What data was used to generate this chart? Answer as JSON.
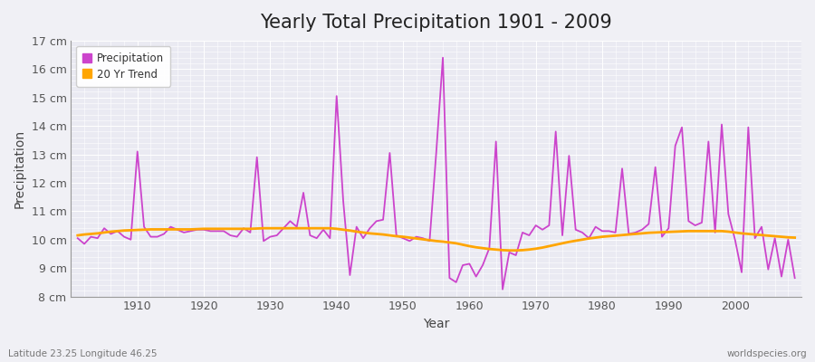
{
  "title": "Yearly Total Precipitation 1901 - 2009",
  "xlabel": "Year",
  "ylabel": "Precipitation",
  "years": [
    1901,
    1902,
    1903,
    1904,
    1905,
    1906,
    1907,
    1908,
    1909,
    1910,
    1911,
    1912,
    1913,
    1914,
    1915,
    1916,
    1917,
    1918,
    1919,
    1920,
    1921,
    1922,
    1923,
    1924,
    1925,
    1926,
    1927,
    1928,
    1929,
    1930,
    1931,
    1932,
    1933,
    1934,
    1935,
    1936,
    1937,
    1938,
    1939,
    1940,
    1941,
    1942,
    1943,
    1944,
    1945,
    1946,
    1947,
    1948,
    1949,
    1950,
    1951,
    1952,
    1953,
    1954,
    1955,
    1956,
    1957,
    1958,
    1959,
    1960,
    1961,
    1962,
    1963,
    1964,
    1965,
    1966,
    1967,
    1968,
    1969,
    1970,
    1971,
    1972,
    1973,
    1974,
    1975,
    1976,
    1977,
    1978,
    1979,
    1980,
    1981,
    1982,
    1983,
    1984,
    1985,
    1986,
    1987,
    1988,
    1989,
    1990,
    1991,
    1992,
    1993,
    1994,
    1995,
    1996,
    1997,
    1998,
    1999,
    2000,
    2001,
    2002,
    2003,
    2004,
    2005,
    2006,
    2007,
    2008,
    2009
  ],
  "precipitation": [
    10.05,
    9.85,
    10.1,
    10.05,
    10.4,
    10.2,
    10.3,
    10.1,
    10.0,
    13.1,
    10.45,
    10.1,
    10.1,
    10.2,
    10.45,
    10.35,
    10.25,
    10.3,
    10.35,
    10.35,
    10.3,
    10.3,
    10.3,
    10.15,
    10.1,
    10.4,
    10.25,
    12.9,
    9.95,
    10.1,
    10.15,
    10.4,
    10.65,
    10.45,
    11.65,
    10.15,
    10.05,
    10.35,
    10.05,
    15.05,
    11.35,
    8.75,
    10.45,
    10.05,
    10.4,
    10.65,
    10.7,
    13.05,
    10.15,
    10.05,
    9.95,
    10.1,
    10.05,
    9.95,
    13.05,
    16.4,
    8.65,
    8.5,
    9.1,
    9.15,
    8.7,
    9.1,
    9.7,
    13.45,
    8.25,
    9.55,
    9.45,
    10.25,
    10.15,
    10.5,
    10.35,
    10.5,
    13.8,
    10.15,
    12.95,
    10.35,
    10.25,
    10.05,
    10.45,
    10.3,
    10.3,
    10.25,
    12.5,
    10.2,
    10.25,
    10.35,
    10.55,
    12.55,
    10.1,
    10.4,
    13.3,
    13.95,
    10.65,
    10.5,
    10.6,
    13.45,
    10.25,
    14.05,
    10.9,
    10.0,
    8.85,
    13.95,
    10.05,
    10.45,
    8.95,
    10.05,
    8.7,
    10.0,
    8.65
  ],
  "trend": [
    10.15,
    10.18,
    10.2,
    10.22,
    10.25,
    10.28,
    10.3,
    10.32,
    10.33,
    10.34,
    10.35,
    10.36,
    10.36,
    10.36,
    10.36,
    10.36,
    10.36,
    10.36,
    10.37,
    10.38,
    10.38,
    10.38,
    10.38,
    10.38,
    10.38,
    10.38,
    10.38,
    10.39,
    10.4,
    10.4,
    10.4,
    10.4,
    10.4,
    10.4,
    10.4,
    10.4,
    10.4,
    10.4,
    10.4,
    10.38,
    10.35,
    10.32,
    10.28,
    10.25,
    10.22,
    10.2,
    10.18,
    10.15,
    10.12,
    10.1,
    10.07,
    10.04,
    10.01,
    9.98,
    9.95,
    9.93,
    9.9,
    9.87,
    9.82,
    9.77,
    9.73,
    9.7,
    9.67,
    9.65,
    9.63,
    9.62,
    9.62,
    9.63,
    9.65,
    9.68,
    9.72,
    9.77,
    9.82,
    9.87,
    9.92,
    9.96,
    10.0,
    10.04,
    10.07,
    10.1,
    10.12,
    10.14,
    10.16,
    10.18,
    10.2,
    10.22,
    10.24,
    10.25,
    10.26,
    10.27,
    10.28,
    10.29,
    10.3,
    10.3,
    10.3,
    10.3,
    10.3,
    10.3,
    10.28,
    10.25,
    10.22,
    10.2,
    10.18,
    10.16,
    10.14,
    10.12,
    10.1,
    10.08,
    10.07
  ],
  "precip_color": "#CC44CC",
  "trend_color": "#FFA500",
  "fig_bg_color": "#F0F0F5",
  "plot_bg_color": "#EAEAF2",
  "grid_color": "#FFFFFF",
  "ylim": [
    8.0,
    17.0
  ],
  "yticks": [
    8,
    9,
    10,
    11,
    12,
    13,
    14,
    15,
    16,
    17
  ],
  "ytick_labels": [
    "8 cm",
    "9 cm",
    "10 cm",
    "11 cm",
    "12 cm",
    "13 cm",
    "14 cm",
    "15 cm",
    "16 cm",
    "17 cm"
  ],
  "xlim_min": 1900,
  "xlim_max": 2010,
  "xticks": [
    1910,
    1920,
    1930,
    1940,
    1950,
    1960,
    1970,
    1980,
    1990,
    2000
  ],
  "subtitle_left": "Latitude 23.25 Longitude 46.25",
  "subtitle_right": "worldspecies.org",
  "title_fontsize": 15,
  "axis_label_fontsize": 10,
  "tick_fontsize": 9,
  "legend_fontsize": 8.5
}
